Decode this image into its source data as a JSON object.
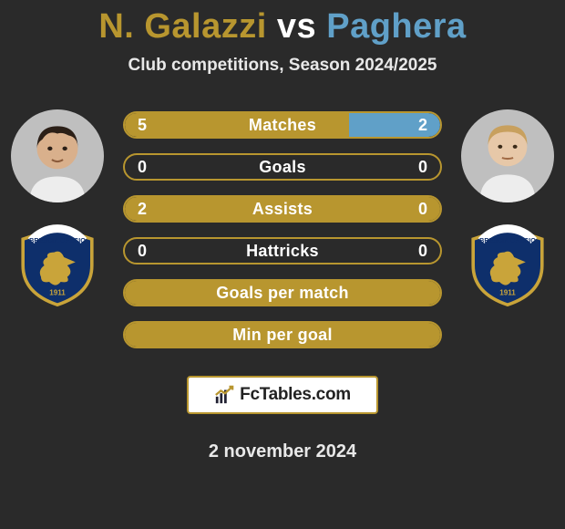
{
  "title": {
    "player1": "N. Galazzi",
    "vs": "vs",
    "player2": "Paghera"
  },
  "subtitle": "Club competitions, Season 2024/2025",
  "colors": {
    "player1": "#b8962f",
    "player2": "#60a0c8",
    "background": "#2a2a2a",
    "bar_border": "#b8962f",
    "text": "#ffffff"
  },
  "avatars": {
    "left": {
      "skin": "#d9b08c",
      "hair": "#2b1f17",
      "bg": "#bfbfbf"
    },
    "right": {
      "skin": "#e7c8a8",
      "hair": "#c8a05e",
      "bg": "#bfbfbf"
    }
  },
  "crest": {
    "shield_fill": "#0e2f6b",
    "shield_stroke": "#c9a43a",
    "ring_fill": "#ffffff",
    "ring_stroke": "#0e2f6b",
    "lion_fill": "#c9a43a",
    "year": "1911"
  },
  "stats": [
    {
      "label": "Matches",
      "left_val": "5",
      "right_val": "2",
      "left_pct": 71,
      "right_pct": 29,
      "show_vals": true
    },
    {
      "label": "Goals",
      "left_val": "0",
      "right_val": "0",
      "left_pct": 0,
      "right_pct": 0,
      "show_vals": true
    },
    {
      "label": "Assists",
      "left_val": "2",
      "right_val": "0",
      "left_pct": 100,
      "right_pct": 0,
      "show_vals": true
    },
    {
      "label": "Hattricks",
      "left_val": "0",
      "right_val": "0",
      "left_pct": 0,
      "right_pct": 0,
      "show_vals": true
    },
    {
      "label": "Goals per match",
      "left_val": "",
      "right_val": "",
      "left_pct": 100,
      "right_pct": 0,
      "show_vals": false,
      "full": true
    },
    {
      "label": "Min per goal",
      "left_val": "",
      "right_val": "",
      "left_pct": 100,
      "right_pct": 0,
      "show_vals": false,
      "full": true
    }
  ],
  "badge": {
    "text": "FcTables.com"
  },
  "date": "2 november 2024"
}
